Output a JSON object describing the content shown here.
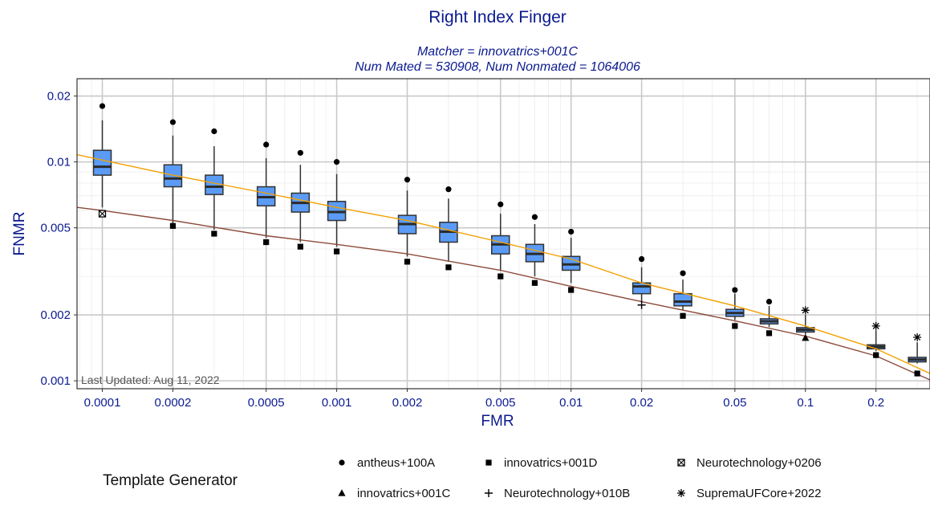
{
  "chart_data": {
    "type": "box",
    "title": "Right Index Finger",
    "subtitle_line1": "Matcher = innovatrics+001C",
    "subtitle_line2": "Num Mated = 530908, Num Nonmated = 1064006",
    "xlabel": "FMR",
    "ylabel": "FNMR",
    "x_scale": "log",
    "y_scale": "log",
    "xlim": [
      7.8e-05,
      0.34
    ],
    "ylim": [
      0.00092,
      0.024
    ],
    "x_ticks": [
      {
        "v": 0.0001,
        "label": "0.0001"
      },
      {
        "v": 0.0002,
        "label": "0.0002"
      },
      {
        "v": 0.0005,
        "label": "0.0005"
      },
      {
        "v": 0.001,
        "label": "0.001"
      },
      {
        "v": 0.002,
        "label": "0.002"
      },
      {
        "v": 0.005,
        "label": "0.005"
      },
      {
        "v": 0.01,
        "label": "0.01"
      },
      {
        "v": 0.02,
        "label": "0.02"
      },
      {
        "v": 0.05,
        "label": "0.05"
      },
      {
        "v": 0.1,
        "label": "0.1"
      },
      {
        "v": 0.2,
        "label": "0.2"
      }
    ],
    "y_ticks": [
      {
        "v": 0.001,
        "label": "0.001"
      },
      {
        "v": 0.002,
        "label": "0.002"
      },
      {
        "v": 0.005,
        "label": "0.005"
      },
      {
        "v": 0.01,
        "label": "0.01"
      },
      {
        "v": 0.02,
        "label": "0.02"
      }
    ],
    "grid": true,
    "annotation": "Last Updated: Aug 11, 2022",
    "box_color": "#5b9bf5",
    "boxes": [
      {
        "fmr": 0.0001,
        "lo": 0.0062,
        "q1": 0.0087,
        "med": 0.0095,
        "q3": 0.0113,
        "hi": 0.0155
      },
      {
        "fmr": 0.0002,
        "lo": 0.0052,
        "q1": 0.0077,
        "med": 0.0084,
        "q3": 0.0097,
        "hi": 0.0132
      },
      {
        "fmr": 0.0003,
        "lo": 0.0049,
        "q1": 0.0071,
        "med": 0.0077,
        "q3": 0.0087,
        "hi": 0.0118
      },
      {
        "fmr": 0.0005,
        "lo": 0.0045,
        "q1": 0.0063,
        "med": 0.0069,
        "q3": 0.0077,
        "hi": 0.0104
      },
      {
        "fmr": 0.0007,
        "lo": 0.0043,
        "q1": 0.0059,
        "med": 0.0065,
        "q3": 0.0072,
        "hi": 0.0097
      },
      {
        "fmr": 0.001,
        "lo": 0.0041,
        "q1": 0.0054,
        "med": 0.0059,
        "q3": 0.0066,
        "hi": 0.0088
      },
      {
        "fmr": 0.002,
        "lo": 0.0037,
        "q1": 0.0047,
        "med": 0.0052,
        "q3": 0.0057,
        "hi": 0.0074
      },
      {
        "fmr": 0.003,
        "lo": 0.0035,
        "q1": 0.0043,
        "med": 0.0048,
        "q3": 0.0053,
        "hi": 0.0068
      },
      {
        "fmr": 0.005,
        "lo": 0.0032,
        "q1": 0.0038,
        "med": 0.0042,
        "q3": 0.0046,
        "hi": 0.0058
      },
      {
        "fmr": 0.007,
        "lo": 0.003,
        "q1": 0.0035,
        "med": 0.0038,
        "q3": 0.0042,
        "hi": 0.0052
      },
      {
        "fmr": 0.01,
        "lo": 0.0028,
        "q1": 0.0032,
        "med": 0.0034,
        "q3": 0.0037,
        "hi": 0.0045
      },
      {
        "fmr": 0.02,
        "lo": 0.0023,
        "q1": 0.0025,
        "med": 0.0027,
        "q3": 0.0028,
        "hi": 0.0033
      },
      {
        "fmr": 0.03,
        "lo": 0.0021,
        "q1": 0.0022,
        "med": 0.0023,
        "q3": 0.0025,
        "hi": 0.0029
      },
      {
        "fmr": 0.05,
        "lo": 0.0019,
        "q1": 0.00197,
        "med": 0.00204,
        "q3": 0.00212,
        "hi": 0.0025
      },
      {
        "fmr": 0.07,
        "lo": 0.00176,
        "q1": 0.00182,
        "med": 0.00187,
        "q3": 0.00192,
        "hi": 0.0022
      },
      {
        "fmr": 0.1,
        "lo": 0.00163,
        "q1": 0.00167,
        "med": 0.00171,
        "q3": 0.00175,
        "hi": 0.002
      },
      {
        "fmr": 0.2,
        "lo": 0.00137,
        "q1": 0.0014,
        "med": 0.00143,
        "q3": 0.00146,
        "hi": 0.0017
      },
      {
        "fmr": 0.3,
        "lo": 0.0012,
        "q1": 0.00122,
        "med": 0.00125,
        "q3": 0.00128,
        "hi": 0.0015
      }
    ],
    "points": [
      {
        "generator": "antheus+100A",
        "shape": "circle",
        "x": [
          0.0001,
          0.0002,
          0.0003,
          0.0005,
          0.0007,
          0.001,
          0.002,
          0.003,
          0.005,
          0.007,
          0.01,
          0.02,
          0.03,
          0.05,
          0.07
        ],
        "y": [
          0.018,
          0.0152,
          0.0138,
          0.012,
          0.011,
          0.01,
          0.0083,
          0.0075,
          0.0064,
          0.0056,
          0.0048,
          0.0036,
          0.0031,
          0.0026,
          0.0023
        ]
      },
      {
        "generator": "innovatrics+001D",
        "shape": "square",
        "x": [
          0.0002,
          0.0003,
          0.0005,
          0.0007,
          0.001,
          0.002,
          0.003,
          0.005,
          0.007,
          0.01,
          0.03,
          0.05,
          0.07,
          0.2,
          0.3
        ],
        "y": [
          0.0051,
          0.0047,
          0.0043,
          0.0041,
          0.0039,
          0.0035,
          0.0033,
          0.003,
          0.0028,
          0.0026,
          0.00198,
          0.00178,
          0.00165,
          0.00131,
          0.00108
        ]
      },
      {
        "generator": "Neurotechnology+0206",
        "shape": "boxx",
        "x": [
          0.0001
        ],
        "y": [
          0.0058
        ]
      },
      {
        "generator": "innovatrics+001C",
        "shape": "triangle",
        "x": [
          0.1
        ],
        "y": [
          0.00157
        ]
      },
      {
        "generator": "Neurotechnology+010B",
        "shape": "plus",
        "x": [
          0.02
        ],
        "y": [
          0.00222
        ]
      },
      {
        "generator": "SupremaUFCore+2022",
        "shape": "asterisk",
        "x": [
          0.1,
          0.2,
          0.3
        ],
        "y": [
          0.0021,
          0.00178,
          0.00158
        ]
      }
    ],
    "lines": [
      {
        "color": "#f2a000",
        "x": [
          7.8e-05,
          0.0001,
          0.0002,
          0.0005,
          0.001,
          0.002,
          0.005,
          0.01,
          0.02,
          0.05,
          0.1,
          0.2,
          0.34
        ],
        "y": [
          0.0108,
          0.0102,
          0.0087,
          0.0072,
          0.0062,
          0.0054,
          0.0043,
          0.0036,
          0.0028,
          0.0022,
          0.00178,
          0.0014,
          0.00108
        ]
      },
      {
        "color": "#8b4a3a",
        "x": [
          7.8e-05,
          0.0001,
          0.0002,
          0.0005,
          0.001,
          0.002,
          0.005,
          0.01,
          0.02,
          0.05,
          0.1,
          0.2,
          0.34
        ],
        "y": [
          0.0062,
          0.006,
          0.0054,
          0.0046,
          0.0042,
          0.0038,
          0.0032,
          0.0027,
          0.0023,
          0.00188,
          0.0016,
          0.0013,
          0.00101
        ]
      }
    ],
    "legend": {
      "title": "Template Generator",
      "position": "bottom",
      "items": [
        {
          "label": "antheus+100A",
          "shape": "circle"
        },
        {
          "label": "innovatrics+001D",
          "shape": "square"
        },
        {
          "label": "Neurotechnology+0206",
          "shape": "boxx"
        },
        {
          "label": "innovatrics+001C",
          "shape": "triangle"
        },
        {
          "label": "Neurotechnology+010B",
          "shape": "plus"
        },
        {
          "label": "SupremaUFCore+2022",
          "shape": "asterisk"
        }
      ]
    }
  }
}
